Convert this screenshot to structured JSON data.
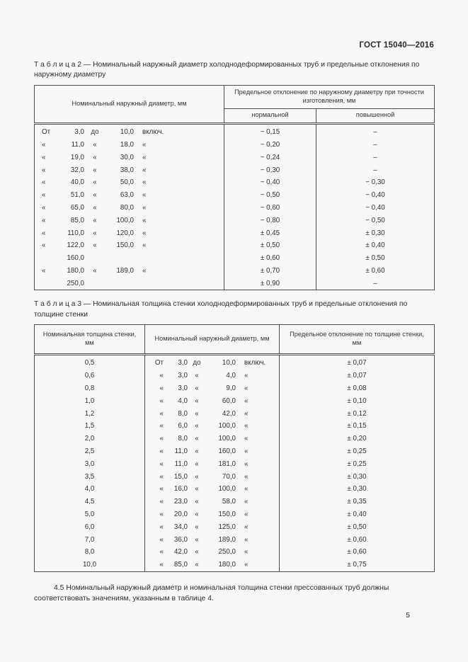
{
  "page": {
    "doc_number": "ГОСТ 15040—2016",
    "paragraph_4_5": "4.5 Номинальный наружный диаметр и номинальная толщина стенки прессованных труб  должны соответствовать значениям, указанным в таблице  4.",
    "page_number": "5"
  },
  "table2": {
    "caption": "Т а б л и ц а  2 —  Номинальный наружный диаметр холоднодеформированных труб и предельные отклонения по наружному диаметру",
    "col1_header": "Номинальный наружный диаметр, мм",
    "col23_header": "Предельное отклонение по  наружному диаметру при точности изготовления, мм",
    "sub_normal": "нормальной",
    "sub_raised": "повышенной",
    "rows": [
      {
        "range": [
          "От",
          "3,0",
          "до",
          "10,0",
          "включ."
        ],
        "normal": "− 0,15",
        "raised": "–"
      },
      {
        "range": [
          "«",
          "11,0",
          "«",
          "18,0",
          "«"
        ],
        "normal": "− 0,20",
        "raised": "–"
      },
      {
        "range": [
          "«",
          "19,0",
          "«",
          "30,0",
          "«"
        ],
        "normal": "− 0,24",
        "raised": "–"
      },
      {
        "range": [
          "«",
          "32,0",
          "«",
          "38,0",
          "«"
        ],
        "normal": "− 0,30",
        "raised": "–"
      },
      {
        "range": [
          "«",
          "40,0",
          "«",
          "50,0",
          "«"
        ],
        "normal": "− 0,40",
        "raised": "− 0,30"
      },
      {
        "range": [
          "«",
          "51,0",
          "«",
          "63,0",
          "«"
        ],
        "normal": "− 0,50",
        "raised": "− 0,40"
      },
      {
        "range": [
          "«",
          "65,0",
          "«",
          "80,0",
          "«"
        ],
        "normal": "− 0,60",
        "raised": "− 0,40"
      },
      {
        "range": [
          "«",
          "85,0",
          "«",
          "100,0",
          "«"
        ],
        "normal": "− 0,80",
        "raised": "− 0,50"
      },
      {
        "range": [
          "«",
          "110,0",
          "«",
          "120,0",
          "«"
        ],
        "normal": "± 0,45",
        "raised": "± 0,30"
      },
      {
        "range": [
          "«",
          "122,0",
          "«",
          "150,0",
          "«"
        ],
        "normal": "± 0,50",
        "raised": "± 0,40"
      },
      {
        "range": [
          "",
          "160,0",
          "",
          "",
          ""
        ],
        "normal": "± 0,60",
        "raised": "± 0,50"
      },
      {
        "range": [
          "«",
          "180,0",
          "«",
          "189,0",
          "«"
        ],
        "normal": "± 0,70",
        "raised": "± 0,60"
      },
      {
        "range": [
          "",
          "250,0",
          "",
          "",
          ""
        ],
        "normal": "± 0,90",
        "raised": "–"
      }
    ]
  },
  "table3": {
    "caption": "Т а б л и ц а  3 —  Номинальная толщина стенки холоднодеформированных труб и предельные отклонения по толщине стенки",
    "col1_header": "Номинальная толщина стенки, мм",
    "col2_header": "Номинальный наружный диаметр, мм",
    "col3_header": "Предельное отклонение  по толщине стенки, мм",
    "rows": [
      {
        "thickness": "0,5",
        "range": [
          "От",
          "3,0",
          "до",
          "10,0",
          "включ."
        ],
        "deviation": "± 0,07"
      },
      {
        "thickness": "0,6",
        "range": [
          "«",
          "3,0",
          "«",
          "4,0",
          "«"
        ],
        "deviation": "± 0,07"
      },
      {
        "thickness": "0,8",
        "range": [
          "«",
          "3,0",
          "«",
          "9,0",
          "«"
        ],
        "deviation": "± 0,08"
      },
      {
        "thickness": "1,0",
        "range": [
          "«",
          "4,0",
          "«",
          "60,0",
          "«"
        ],
        "deviation": "± 0,10"
      },
      {
        "thickness": "1,2",
        "range": [
          "«",
          "8,0",
          "«",
          "42,0",
          "«"
        ],
        "deviation": "± 0,12"
      },
      {
        "thickness": "1,5",
        "range": [
          "«",
          "6,0",
          "«",
          "100,0",
          "«"
        ],
        "deviation": "± 0,15"
      },
      {
        "thickness": "2,0",
        "range": [
          "«",
          "8,0",
          "«",
          "100,0",
          "«"
        ],
        "deviation": "± 0,20"
      },
      {
        "thickness": "2,5",
        "range": [
          "«",
          "11,0",
          "«",
          "160,0",
          "«"
        ],
        "deviation": "± 0,25"
      },
      {
        "thickness": "3,0",
        "range": [
          "«",
          "11,0",
          "«",
          "181,0",
          "«"
        ],
        "deviation": "± 0,25"
      },
      {
        "thickness": "3,5",
        "range": [
          "«",
          "15,0",
          "«",
          "70,0",
          "«"
        ],
        "deviation": "± 0,30"
      },
      {
        "thickness": "4,0",
        "range": [
          "«",
          "16,0",
          "«",
          "100,0",
          "«"
        ],
        "deviation": "± 0,30"
      },
      {
        "thickness": "4,5",
        "range": [
          "«",
          "23,0",
          "«",
          "58,0",
          "«"
        ],
        "deviation": "± 0,35"
      },
      {
        "thickness": "5,0",
        "range": [
          "«",
          "20,0",
          "«",
          "150,0",
          "«"
        ],
        "deviation": "± 0,40"
      },
      {
        "thickness": "6,0",
        "range": [
          "«",
          "34,0",
          "«",
          "125,0",
          "«"
        ],
        "deviation": "± 0,50"
      },
      {
        "thickness": "7,0",
        "range": [
          "«",
          "36,0",
          "«",
          "189,0",
          "«"
        ],
        "deviation": "± 0,60"
      },
      {
        "thickness": "8,0",
        "range": [
          "«",
          "42,0",
          "«",
          "250,0",
          "«"
        ],
        "deviation": "± 0,60"
      },
      {
        "thickness": "10,0",
        "range": [
          "«",
          "85,0",
          "«",
          "180,0",
          "«"
        ],
        "deviation": "± 0,75"
      }
    ]
  }
}
